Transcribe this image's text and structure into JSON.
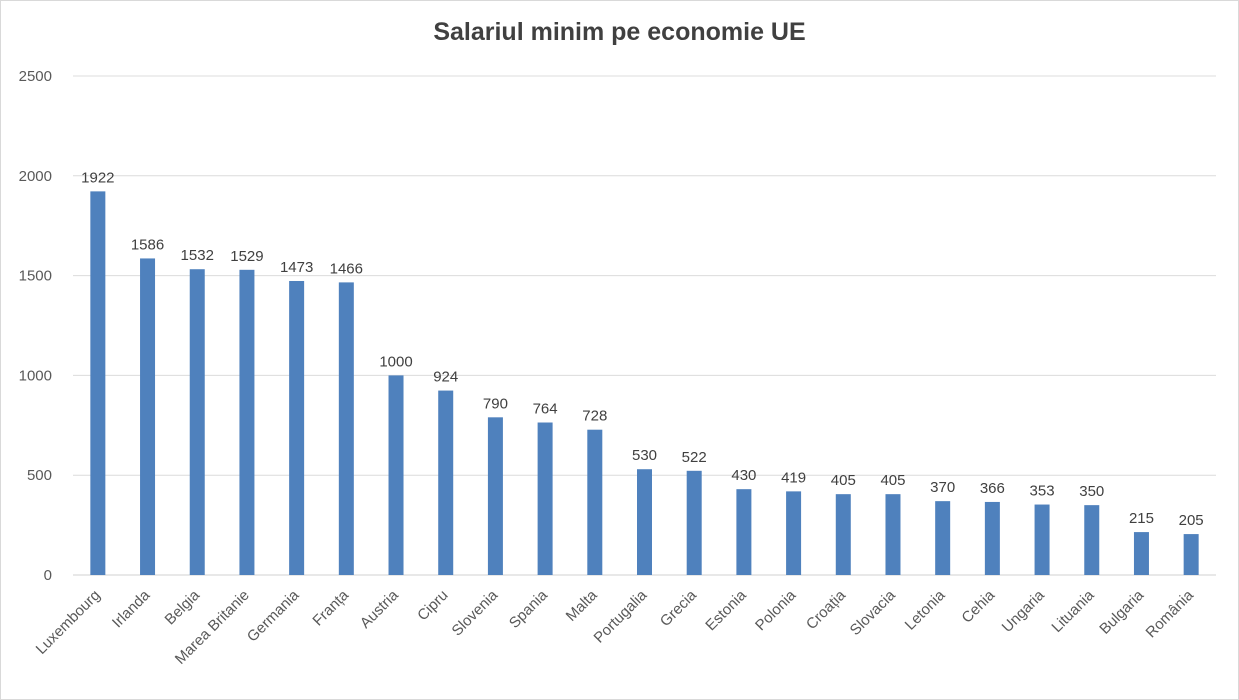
{
  "chart_data": {
    "type": "bar",
    "title": "Salariul minim pe economie UE",
    "categories": [
      "Luxembourg",
      "Irlanda",
      "Belgia",
      "Marea Britanie",
      "Germania",
      "Franța",
      "Austria",
      "Cipru",
      "Slovenia",
      "Spania",
      "Malta",
      "Portugalia",
      "Grecia",
      "Estonia",
      "Polonia",
      "Croația",
      "Slovacia",
      "Letonia",
      "Cehia",
      "Ungaria",
      "Lituania",
      "Bulgaria",
      "România"
    ],
    "values": [
      1922,
      1586,
      1532,
      1529,
      1473,
      1466,
      1000,
      924,
      790,
      764,
      728,
      530,
      522,
      430,
      419,
      405,
      405,
      370,
      366,
      353,
      350,
      215,
      205
    ],
    "ylim": [
      0,
      2500
    ],
    "yticks": [
      "0",
      "500",
      "1000",
      "1500",
      "2000",
      "2500"
    ],
    "grid": true,
    "legend": "none",
    "bar_color": "#4f81bd",
    "xlabel": "",
    "ylabel": ""
  }
}
